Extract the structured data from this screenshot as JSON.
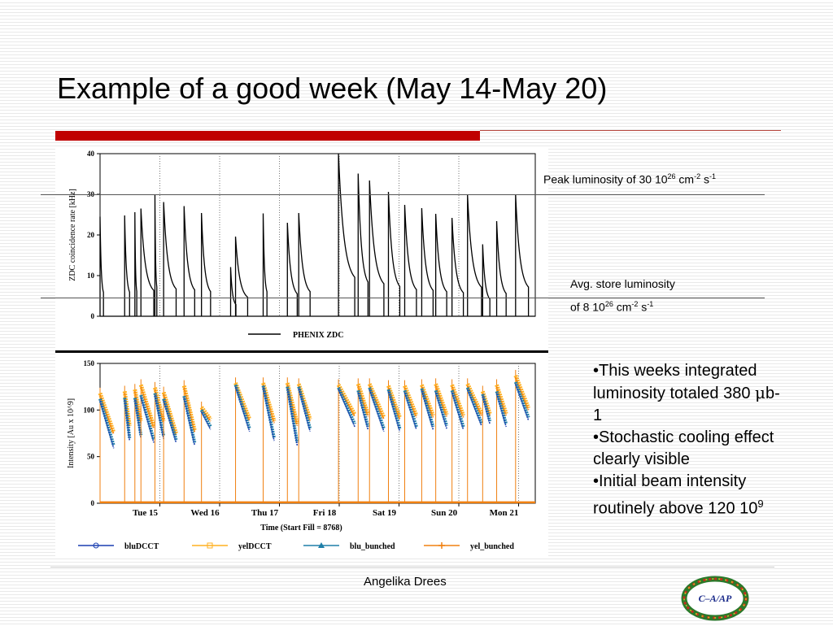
{
  "slide": {
    "title": "Example of a good week (May 14-May 20)",
    "footer": "Angelika Drees",
    "logo_text": "C–A/AP"
  },
  "annotations": {
    "peak": {
      "text": "Peak luminosity of 30 10",
      "exp": "26",
      "unit1": " cm",
      "unit1_exp": "-2",
      "unit2": " s",
      "unit2_exp": "-1"
    },
    "avg": {
      "line1": "Avg. store luminosity",
      "text": "of 8  10",
      "exp": "26",
      "unit1": " cm",
      "unit1_exp": "-2",
      "unit2": " s",
      "unit2_exp": "-1"
    }
  },
  "bullets": [
    {
      "pre": "•This weeks integrated luminosity totaled 380 ",
      "sym": "μ",
      "post": "b-1"
    },
    {
      "pre": "•Stochastic cooling effect clearly visible",
      "sym": "",
      "post": ""
    },
    {
      "pre": "•Initial beam intensity routinely above 120 10",
      "sym": "",
      "post": "",
      "sup": "9"
    }
  ],
  "chart_data": [
    {
      "type": "line",
      "title": "",
      "ylabel": "ZDC coincidence rate [kHz]",
      "ylim": [
        0,
        40
      ],
      "yticks": [
        0,
        10,
        20,
        30,
        40
      ],
      "legend": [
        {
          "name": "PHENIX ZDC",
          "color": "#000000"
        }
      ],
      "legend_position": "bottom",
      "fills": [
        {
          "start": 0.0,
          "end": 0.09,
          "peak": 24.5
        },
        {
          "start": 0.65,
          "end": 0.78,
          "peak": 24.8
        },
        {
          "start": 0.92,
          "end": 0.97,
          "peak": 25.6
        },
        {
          "start": 1.08,
          "end": 1.42,
          "peak": 26.5
        },
        {
          "start": 1.45,
          "end": 1.5,
          "peak": 30.0
        },
        {
          "start": 1.68,
          "end": 2.01,
          "peak": 28.1
        },
        {
          "start": 2.22,
          "end": 2.5,
          "peak": 27.1
        },
        {
          "start": 2.68,
          "end": 2.92,
          "peak": 25.4
        },
        {
          "start": 3.45,
          "end": 3.59,
          "peak": 12.1
        },
        {
          "start": 3.58,
          "end": 3.9,
          "peak": 19.6
        },
        {
          "start": 4.31,
          "end": 4.41,
          "peak": 25.3
        },
        {
          "start": 4.95,
          "end": 5.21,
          "peak": 23.0
        },
        {
          "start": 5.25,
          "end": 5.55,
          "peak": 25.4
        },
        {
          "start": 6.3,
          "end": 6.73,
          "peak": 40.0
        },
        {
          "start": 6.82,
          "end": 7.08,
          "peak": 35.1
        },
        {
          "start": 7.12,
          "end": 7.5,
          "peak": 33.4
        },
        {
          "start": 7.62,
          "end": 7.92,
          "peak": 30.6
        },
        {
          "start": 8.05,
          "end": 8.36,
          "peak": 27.4
        },
        {
          "start": 8.5,
          "end": 8.8,
          "peak": 26.6
        },
        {
          "start": 8.87,
          "end": 9.16,
          "peak": 25.2
        },
        {
          "start": 9.3,
          "end": 9.6,
          "peak": 24.2
        },
        {
          "start": 9.71,
          "end": 10.08,
          "peak": 29.8
        },
        {
          "start": 10.11,
          "end": 10.3,
          "peak": 17.7
        },
        {
          "start": 10.48,
          "end": 10.73,
          "peak": 23.4
        },
        {
          "start": 10.98,
          "end": 11.32,
          "peak": 30.0
        }
      ],
      "annotation_lines": [
        {
          "value": 30,
          "label": "Peak luminosity"
        },
        {
          "value": 4.6,
          "label": "Avg. store luminosity"
        }
      ]
    },
    {
      "type": "line",
      "title": "",
      "xlabel": "Time (Start Fill = 8768)",
      "ylabel": "Intensity [Au x 10^9]",
      "ylim": [
        0,
        150
      ],
      "yticks": [
        0,
        50,
        100,
        150
      ],
      "categories": [
        "Tue 15",
        "Wed 16",
        "Thu 17",
        "Fri 18",
        "Sat 19",
        "Sun 20",
        "Mon 21"
      ],
      "series": [
        {
          "name": "bluDCCT",
          "color": "#1a3fb0",
          "marker": "circle"
        },
        {
          "name": "yelDCCT",
          "color": "#ffb020",
          "marker": "square"
        },
        {
          "name": "blu_bunched",
          "color": "#1f7fa8",
          "marker": "triangle"
        },
        {
          "name": "yel_bunched",
          "color": "#f08010",
          "marker": "plus"
        }
      ],
      "legend_position": "bottom",
      "fills": [
        {
          "start": 0.0,
          "end": 0.36,
          "blue": [
            112,
            62
          ],
          "yellow": [
            118,
            76
          ]
        },
        {
          "start": 0.65,
          "end": 0.78,
          "blue": [
            113,
            70
          ],
          "yellow": [
            120,
            83
          ]
        },
        {
          "start": 0.92,
          "end": 1.08,
          "blue": [
            113,
            73
          ],
          "yellow": [
            122,
            88
          ]
        },
        {
          "start": 1.08,
          "end": 1.42,
          "blue": [
            116,
            68
          ],
          "yellow": [
            127,
            82
          ]
        },
        {
          "start": 1.45,
          "end": 1.68,
          "blue": [
            118,
            72
          ],
          "yellow": [
            124,
            88
          ]
        },
        {
          "start": 1.68,
          "end": 2.01,
          "blue": [
            112,
            68
          ],
          "yellow": [
            119,
            75
          ]
        },
        {
          "start": 2.22,
          "end": 2.5,
          "blue": [
            115,
            65
          ],
          "yellow": [
            126,
            78
          ]
        },
        {
          "start": 2.68,
          "end": 2.92,
          "blue": [
            100,
            82
          ],
          "yellow": [
            103,
            90
          ]
        },
        {
          "start": 3.58,
          "end": 3.95,
          "blue": [
            127,
            80
          ],
          "yellow": [
            129,
            90
          ]
        },
        {
          "start": 4.31,
          "end": 4.6,
          "blue": [
            126,
            70
          ],
          "yellow": [
            129,
            88
          ]
        },
        {
          "start": 4.95,
          "end": 5.21,
          "blue": [
            125,
            65
          ],
          "yellow": [
            129,
            85
          ]
        },
        {
          "start": 5.25,
          "end": 5.55,
          "blue": [
            125,
            80
          ],
          "yellow": [
            128,
            90
          ]
        },
        {
          "start": 6.3,
          "end": 6.73,
          "blue": [
            124,
            85
          ],
          "yellow": [
            127,
            95
          ]
        },
        {
          "start": 6.82,
          "end": 7.08,
          "blue": [
            121,
            82
          ],
          "yellow": [
            128,
            95
          ]
        },
        {
          "start": 7.12,
          "end": 7.5,
          "blue": [
            124,
            80
          ],
          "yellow": [
            128,
            92
          ]
        },
        {
          "start": 7.62,
          "end": 7.92,
          "blue": [
            122,
            80
          ],
          "yellow": [
            126,
            92
          ]
        },
        {
          "start": 8.05,
          "end": 8.36,
          "blue": [
            121,
            82
          ],
          "yellow": [
            126,
            94
          ]
        },
        {
          "start": 8.5,
          "end": 8.8,
          "blue": [
            123,
            82
          ],
          "yellow": [
            127,
            94
          ]
        },
        {
          "start": 8.87,
          "end": 9.16,
          "blue": [
            121,
            83
          ],
          "yellow": [
            128,
            95
          ]
        },
        {
          "start": 9.3,
          "end": 9.6,
          "blue": [
            121,
            82
          ],
          "yellow": [
            127,
            94
          ]
        },
        {
          "start": 9.71,
          "end": 10.08,
          "blue": [
            124,
            86
          ],
          "yellow": [
            128,
            96
          ]
        },
        {
          "start": 10.11,
          "end": 10.3,
          "blue": [
            117,
            88
          ],
          "yellow": [
            120,
            96
          ]
        },
        {
          "start": 10.48,
          "end": 10.73,
          "blue": [
            120,
            85
          ],
          "yellow": [
            127,
            96
          ]
        },
        {
          "start": 10.98,
          "end": 11.32,
          "blue": [
            130,
            92
          ],
          "yellow": [
            137,
            102
          ]
        }
      ]
    }
  ]
}
